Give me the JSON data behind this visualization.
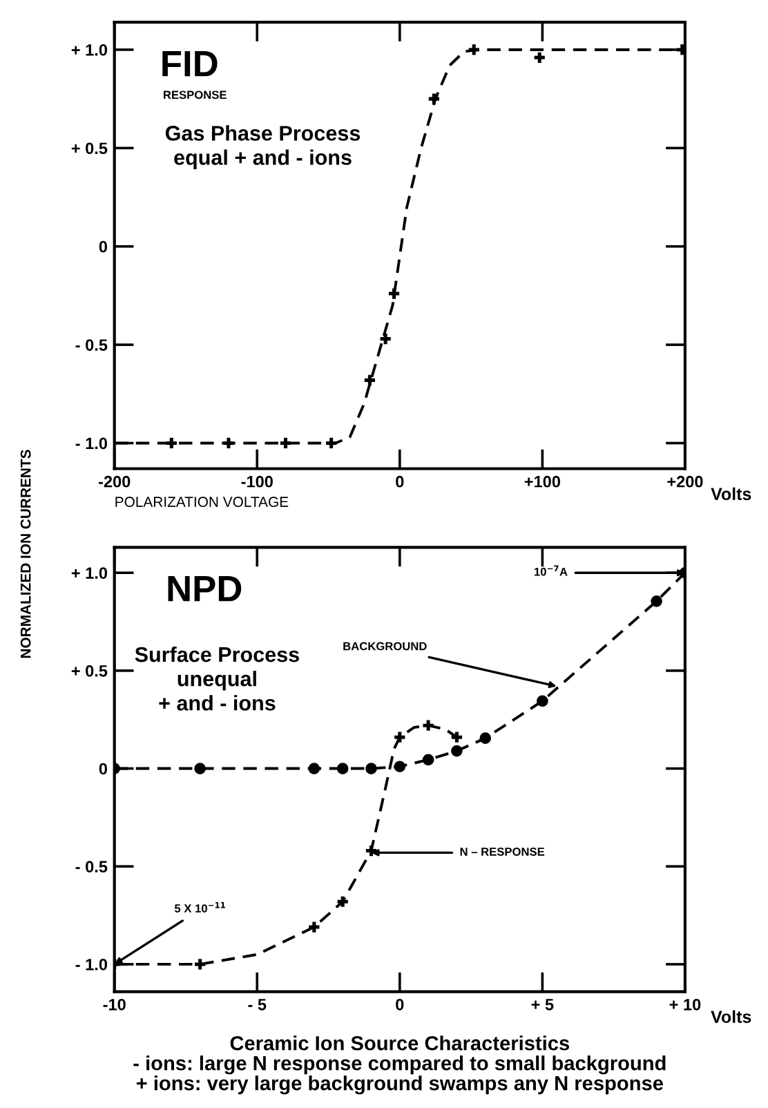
{
  "chart_data": [
    {
      "type": "line",
      "xlabel": "POLARIZATION VOLTAGE",
      "ylabel": "NORMALIZED ION CURRENTS",
      "xlim": [
        -200,
        200
      ],
      "ylim": [
        -1.13,
        1.14
      ],
      "xticks": [
        {
          "value": -200,
          "label": "-200"
        },
        {
          "value": -100,
          "label": "-100"
        },
        {
          "value": 0,
          "label": "0"
        },
        {
          "value": 100,
          "label": "+100"
        },
        {
          "value": 200,
          "label": "+200"
        }
      ],
      "yticks": [
        {
          "value": -1.0,
          "label": "- 1.0"
        },
        {
          "value": -0.5,
          "label": "- 0.5"
        },
        {
          "value": 0,
          "label": "0"
        },
        {
          "value": 0.5,
          "label": "+ 0.5"
        },
        {
          "value": 1.0,
          "label": "+ 1.0"
        }
      ],
      "annotations": [
        "FID",
        "RESPONSE",
        "Gas Phase Process\nequal + and - ions",
        "Volts"
      ],
      "series": [
        {
          "color": "#000000",
          "line_style": "dashed",
          "marker": "none",
          "x": [
            -200,
            -45,
            -35,
            -25,
            -15,
            -5,
            0,
            5,
            15,
            25,
            35,
            45,
            55,
            200
          ],
          "values": [
            -1.0,
            -1.0,
            -0.97,
            -0.8,
            -0.55,
            -0.3,
            -0.05,
            0.2,
            0.5,
            0.75,
            0.92,
            0.99,
            1.0,
            1.0
          ]
        },
        {
          "type": "scatter",
          "color": "#000000",
          "marker": "cross",
          "x": [
            -160,
            -120,
            -80,
            -48,
            -21,
            -10,
            -4,
            24,
            52,
            98,
            198
          ],
          "values": [
            -1.0,
            -1.0,
            -1.0,
            -1.0,
            -0.68,
            -0.47,
            -0.24,
            0.75,
            1.0,
            0.96,
            1.0
          ]
        }
      ]
    },
    {
      "type": "line",
      "xlim": [
        -10,
        10
      ],
      "ylim": [
        -1.14,
        1.13
      ],
      "xticks": [
        {
          "value": -10,
          "label": "-10"
        },
        {
          "value": -5,
          "label": "- 5"
        },
        {
          "value": 0,
          "label": "0"
        },
        {
          "value": 5,
          "label": "+ 5"
        },
        {
          "value": 10,
          "label": "+ 10"
        }
      ],
      "yticks": [
        {
          "value": -1.0,
          "label": "- 1.0"
        },
        {
          "value": -0.5,
          "label": "- 0.5"
        },
        {
          "value": 0,
          "label": "0"
        },
        {
          "value": 0.5,
          "label": "+ 0.5"
        },
        {
          "value": 1.0,
          "label": "+ 1.0"
        }
      ],
      "annotations": [
        "NPD",
        "Surface Process\nunequal\n+ and - ions",
        {
          "text": "10$^{−7}$A",
          "x": 10,
          "y": 1.0
        },
        {
          "text": "BACKGROUND",
          "x": 5.5,
          "y": 0.42
        },
        {
          "text": "N – RESPONSE",
          "x": -1,
          "y": -0.43
        },
        {
          "text": "5 X 10$^{−11}$",
          "x": -10,
          "y": -1.0
        },
        "Volts",
        "Ceramic Ion Source Characteristics",
        "- ions: large N response compared to small background",
        "+ ions: very large background swamps any N response"
      ],
      "series": [
        {
          "color": "#000000",
          "line_style": "dashed",
          "marker": "circle",
          "x": [
            -10,
            -7,
            -3,
            -2,
            -1,
            0,
            1,
            2,
            3,
            5,
            9,
            10
          ],
          "values": [
            0,
            0,
            0,
            0,
            0,
            0.01,
            0.045,
            0.09,
            0.155,
            0.345,
            0.855,
            1.0
          ]
        },
        {
          "color": "#000000",
          "line_style": "dashed",
          "marker": "none",
          "x": [
            -10,
            -7,
            -5,
            -3,
            -2,
            -1,
            -0.5,
            -0.2,
            0,
            0.5,
            1,
            1.6,
            2
          ],
          "values": [
            -1.0,
            -1.0,
            -0.95,
            -0.81,
            -0.68,
            -0.42,
            -0.1,
            0.1,
            0.16,
            0.21,
            0.22,
            0.2,
            0.16
          ]
        },
        {
          "type": "scatter",
          "color": "#000000",
          "marker": "cross",
          "x": [
            -10,
            -7,
            -3,
            -2,
            -1,
            0,
            1,
            2
          ],
          "values": [
            -1.0,
            -1.0,
            -0.81,
            -0.68,
            -0.42,
            0.16,
            0.22,
            0.16
          ]
        }
      ]
    }
  ]
}
